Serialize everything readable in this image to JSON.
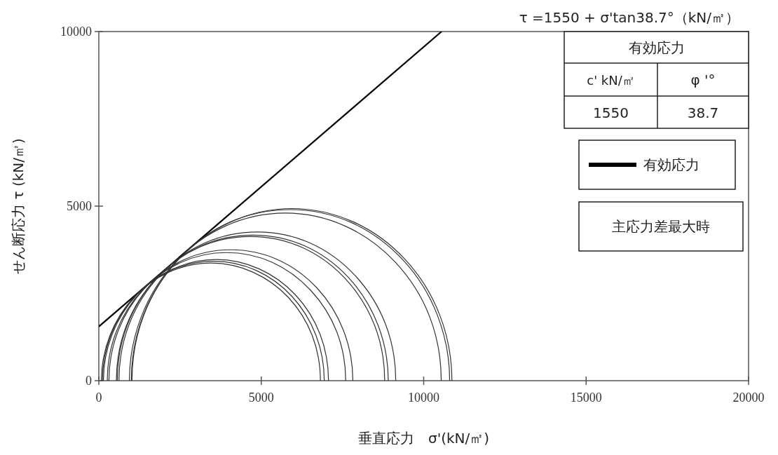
{
  "chart_data": {
    "type": "line",
    "title": "τ =1550 + σ'tan38.7°（kN/㎡）",
    "xlabel": "垂直応力　σ'(kN/㎡)",
    "ylabel": "せん断応力 τ (kN/㎡)",
    "xlim": [
      0,
      20000
    ],
    "xticks": [
      0,
      5000,
      10000,
      15000,
      20000
    ],
    "ylim": [
      0,
      10000
    ],
    "yticks": [
      0,
      5000,
      10000
    ],
    "grid": false,
    "legend": "top right",
    "annotations": [
      "有効応力",
      "c' kN/㎡",
      "φ '°",
      "1550",
      "38.7",
      "主応力差最大時"
    ],
    "series": [
      {
        "name": "有効応力",
        "color": "#000000",
        "x": [
          0,
          10550
        ],
        "values": [
          1550,
          10000
        ]
      },
      {
        "color": "#333333",
        "x": [
          6820,
          6570,
          5840,
          4740,
          3450,
          2160,
          1070,
          340,
          80
        ],
        "values": [
          0,
          1290,
          2380,
          3110,
          3370,
          3110,
          2380,
          1290,
          0
        ]
      },
      {
        "color": "#333333",
        "x": [
          6940,
          6680,
          5940,
          4840,
          3530,
          2220,
          1110,
          370,
          110
        ],
        "values": [
          0,
          1310,
          2420,
          3160,
          3420,
          3160,
          2420,
          1310,
          0
        ]
      },
      {
        "color": "#333333",
        "x": [
          7070,
          6810,
          6060,
          4940,
          3610,
          2280,
          1160,
          410,
          140
        ],
        "values": [
          0,
          1330,
          2450,
          3200,
          3470,
          3200,
          2450,
          1330,
          0
        ]
      },
      {
        "color": "#333333",
        "x": [
          7600,
          7320,
          6520,
          5340,
          3930,
          2530,
          1340,
          540,
          260
        ],
        "values": [
          0,
          1410,
          2590,
          3390,
          3670,
          3390,
          2590,
          1410,
          0
        ]
      },
      {
        "color": "#333333",
        "x": [
          7820,
          7530,
          6720,
          5500,
          4060,
          2630,
          1410,
          600,
          310
        ],
        "values": [
          0,
          1440,
          2650,
          3470,
          3750,
          3470,
          2650,
          1440,
          0
        ]
      },
      {
        "color": "#333333",
        "x": [
          8800,
          8490,
          7590,
          6250,
          4670,
          3090,
          1750,
          850,
          540
        ],
        "values": [
          0,
          1580,
          2920,
          3820,
          4130,
          3820,
          2920,
          1580,
          0
        ]
      },
      {
        "color": "#333333",
        "x": [
          8910,
          8590,
          7690,
          6340,
          4740,
          3140,
          1790,
          880,
          570
        ],
        "values": [
          0,
          1600,
          2950,
          3860,
          4170,
          3860,
          2950,
          1600,
          0
        ]
      },
      {
        "color": "#333333",
        "x": [
          9140,
          8820,
          7890,
          6510,
          4880,
          3250,
          1870,
          940,
          620
        ],
        "values": [
          0,
          1630,
          3010,
          3940,
          4260,
          3940,
          3010,
          1630,
          0
        ]
      },
      {
        "color": "#333333",
        "x": [
          10540,
          10180,
          9130,
          7580,
          5740,
          3900,
          2350,
          1310,
          940
        ],
        "values": [
          0,
          1840,
          3390,
          4430,
          4800,
          4430,
          3390,
          1840,
          0
        ]
      },
      {
        "color": "#333333",
        "x": [
          10800,
          10420,
          9360,
          7770,
          5900,
          4020,
          2440,
          1370,
          1000
        ],
        "values": [
          0,
          1880,
          3460,
          4530,
          4900,
          4530,
          3460,
          1880,
          0
        ]
      },
      {
        "color": "#333333",
        "x": [
          10870,
          10490,
          9420,
          7830,
          5940,
          4060,
          2460,
          1390,
          1020
        ],
        "values": [
          0,
          1890,
          3480,
          4550,
          4930,
          4550,
          3480,
          1890,
          0
        ]
      }
    ]
  }
}
